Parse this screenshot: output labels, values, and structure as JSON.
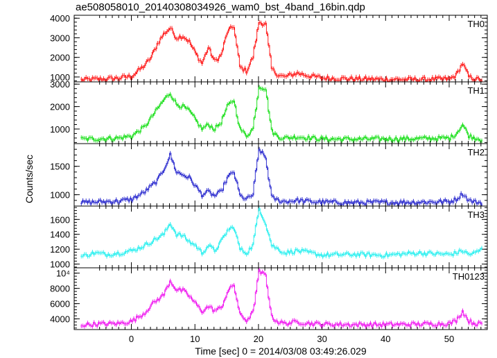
{
  "chart_data": {
    "type": "line",
    "title": "ae508058010_20140308034926_wam0_bst_4band_16bin.qdp",
    "xlabel": "Time [sec] 0 = 2014/03/08 03:49:26.029",
    "ylabel": "Counts/sec",
    "xlim": [
      -9,
      56
    ],
    "xticks": [
      0,
      10,
      20,
      30,
      40,
      50
    ],
    "xtick_labels": [
      "0",
      "10",
      "20",
      "30",
      "40",
      "50"
    ],
    "grid": false,
    "style": "line with error bars",
    "panels": [
      {
        "name": "TH0",
        "color": "#ff2020",
        "ylim": [
          750,
          4150
        ],
        "yticks": [
          1000,
          2000,
          3000,
          4000
        ],
        "ytick_labels": [
          "1000",
          "2000",
          "3000",
          "4000"
        ],
        "x": [
          -8,
          -6,
          -4,
          -2,
          0,
          2,
          3,
          4,
          5,
          6,
          7,
          8,
          9,
          10,
          11,
          12,
          13,
          14,
          15,
          16,
          17,
          18,
          19,
          20,
          21,
          22,
          23,
          24,
          26,
          28,
          30,
          35,
          40,
          45,
          50,
          51,
          52,
          53,
          54,
          55
        ],
        "values": [
          850,
          880,
          900,
          950,
          1050,
          1600,
          2000,
          2700,
          3200,
          3500,
          3000,
          3100,
          2800,
          2200,
          1700,
          2500,
          1800,
          2100,
          3300,
          3600,
          1500,
          1300,
          2000,
          3800,
          3700,
          1400,
          1100,
          1000,
          1200,
          1050,
          950,
          900,
          880,
          870,
          900,
          1100,
          1700,
          1000,
          900,
          850
        ]
      },
      {
        "name": "TH1",
        "color": "#20e020",
        "ylim": [
          350,
          3100
        ],
        "yticks": [
          1000,
          2000,
          3000
        ],
        "ytick_labels": [
          "1000",
          "2000",
          "3000"
        ],
        "x": [
          -8,
          -6,
          -4,
          -2,
          0,
          2,
          3,
          4,
          5,
          6,
          7,
          8,
          9,
          10,
          11,
          12,
          13,
          14,
          15,
          16,
          17,
          18,
          19,
          20,
          21,
          22,
          23,
          24,
          26,
          28,
          30,
          35,
          40,
          45,
          50,
          51,
          52,
          53,
          54,
          55
        ],
        "values": [
          550,
          560,
          580,
          600,
          700,
          1100,
          1500,
          1900,
          2300,
          2600,
          2100,
          2000,
          1800,
          1400,
          1000,
          1200,
          1000,
          1300,
          2000,
          2300,
          1000,
          700,
          1000,
          2900,
          2800,
          900,
          650,
          600,
          650,
          600,
          560,
          550,
          560,
          570,
          600,
          800,
          1200,
          700,
          600,
          550
        ]
      },
      {
        "name": "TH2",
        "color": "#3030d0",
        "ylim": [
          800,
          1900
        ],
        "yticks": [
          1000,
          1500
        ],
        "ytick_labels": [
          "1000",
          "1500"
        ],
        "x": [
          -8,
          -6,
          -4,
          -2,
          0,
          2,
          3,
          4,
          5,
          6,
          7,
          8,
          9,
          10,
          11,
          12,
          13,
          14,
          15,
          16,
          17,
          18,
          19,
          20,
          21,
          22,
          23,
          24,
          26,
          28,
          30,
          35,
          40,
          45,
          50,
          51,
          52,
          53,
          54,
          55
        ],
        "values": [
          860,
          870,
          880,
          890,
          920,
          1050,
          1150,
          1250,
          1450,
          1700,
          1400,
          1350,
          1300,
          1150,
          1000,
          1050,
          980,
          1050,
          1300,
          1400,
          980,
          920,
          1000,
          1800,
          1650,
          950,
          900,
          880,
          900,
          880,
          870,
          860,
          865,
          870,
          880,
          920,
          1020,
          900,
          870,
          860
        ]
      },
      {
        "name": "TH3",
        "color": "#30f0f0",
        "ylim": [
          950,
          1780
        ],
        "yticks": [
          1000,
          1200,
          1400,
          1600
        ],
        "ytick_labels": [
          "1000",
          "1200",
          "1400",
          "1600"
        ],
        "x": [
          -8,
          -6,
          -4,
          -2,
          0,
          2,
          3,
          4,
          5,
          6,
          7,
          8,
          9,
          10,
          11,
          12,
          13,
          14,
          15,
          16,
          17,
          18,
          19,
          20,
          21,
          22,
          23,
          24,
          26,
          28,
          30,
          35,
          40,
          45,
          50,
          51,
          52,
          53,
          54,
          55
        ],
        "values": [
          1100,
          1150,
          1130,
          1150,
          1180,
          1250,
          1300,
          1350,
          1400,
          1550,
          1400,
          1380,
          1300,
          1250,
          1150,
          1250,
          1180,
          1300,
          1450,
          1500,
          1200,
          1150,
          1250,
          1750,
          1550,
          1250,
          1200,
          1150,
          1180,
          1150,
          1120,
          1130,
          1120,
          1150,
          1130,
          1150,
          1180,
          1130,
          1150,
          1200
        ]
      },
      {
        "name": "TH0123",
        "color": "#f020f0",
        "ylim": [
          2600,
          10700
        ],
        "yticks": [
          4000,
          6000,
          8000,
          10000
        ],
        "ytick_labels": [
          "4000",
          "6000",
          "8000",
          "10⁴"
        ],
        "x": [
          -8,
          -6,
          -4,
          -2,
          0,
          2,
          3,
          4,
          5,
          6,
          7,
          8,
          9,
          10,
          11,
          12,
          13,
          14,
          15,
          16,
          17,
          18,
          19,
          20,
          21,
          22,
          23,
          24,
          26,
          28,
          30,
          35,
          40,
          45,
          50,
          51,
          52,
          53,
          54,
          55
        ],
        "values": [
          3200,
          3300,
          3350,
          3400,
          3700,
          4800,
          5800,
          6500,
          7200,
          9000,
          7800,
          7700,
          7000,
          6000,
          5000,
          5600,
          5100,
          5400,
          7500,
          8500,
          4500,
          3800,
          4800,
          10200,
          9700,
          4200,
          3600,
          3400,
          3600,
          3400,
          3300,
          3250,
          3250,
          3300,
          3400,
          3800,
          5000,
          3700,
          3400,
          3300
        ]
      }
    ]
  }
}
